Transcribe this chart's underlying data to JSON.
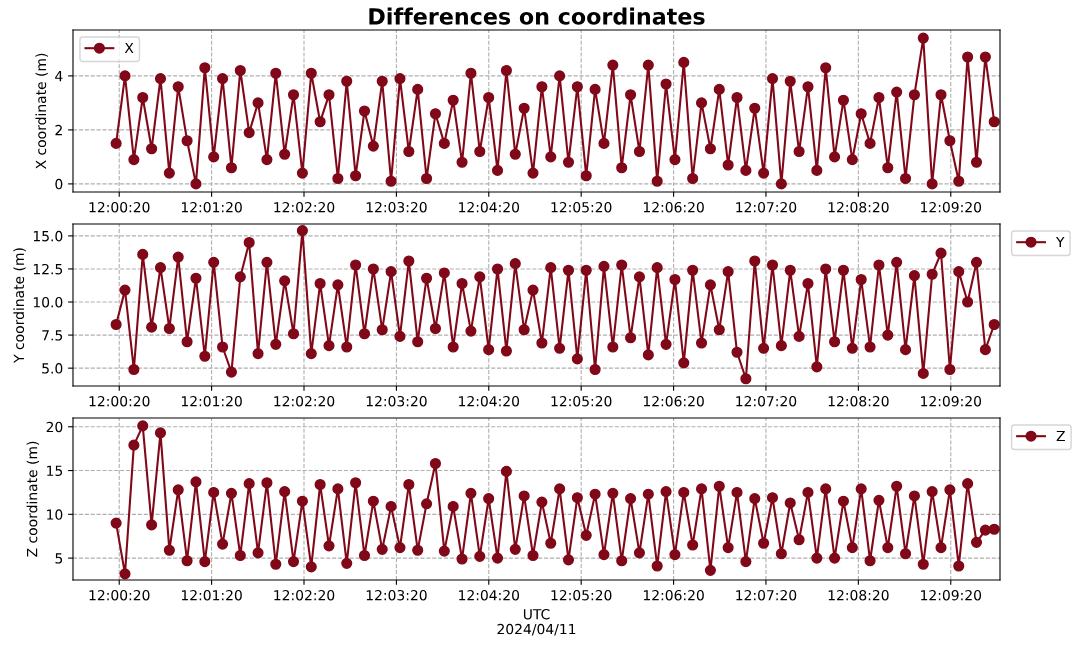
{
  "chart_data": [
    {
      "type": "line",
      "title": "Differences on coordinates",
      "ylabel": "X coordinate (m)",
      "legend": "top left",
      "grid": true,
      "marker": "circle",
      "line_style": "solid",
      "xlim": [
        11.99722,
        12.16444
      ],
      "ylim": [
        -0.3,
        5.7
      ],
      "yticks": [
        0,
        2,
        4
      ],
      "xticks": [
        {
          "value": 12.00556,
          "label": "12:00:20"
        },
        {
          "value": 12.02222,
          "label": "12:01:20"
        },
        {
          "value": 12.03889,
          "label": "12:02:20"
        },
        {
          "value": 12.05556,
          "label": "12:03:20"
        },
        {
          "value": 12.07222,
          "label": "12:04:20"
        },
        {
          "value": 12.08889,
          "label": "12:05:20"
        },
        {
          "value": 12.10556,
          "label": "12:06:20"
        },
        {
          "value": 12.12222,
          "label": "12:07:20"
        },
        {
          "value": 12.13889,
          "label": "12:08:20"
        },
        {
          "value": 12.15556,
          "label": "12:09:20"
        }
      ],
      "x": [
        12.005,
        12.0066,
        12.0082,
        12.0098,
        12.0114,
        12.013,
        12.0146,
        12.0162,
        12.0178,
        12.0194,
        12.021,
        12.0226,
        12.0242,
        12.0258,
        12.0274,
        12.029,
        12.0306,
        12.0322,
        12.0338,
        12.0354,
        12.037,
        12.0386,
        12.0402,
        12.0418,
        12.0434,
        12.045,
        12.0466,
        12.0482,
        12.0498,
        12.0514,
        12.053,
        12.0546,
        12.0562,
        12.0578,
        12.0594,
        12.061,
        12.0626,
        12.0642,
        12.0658,
        12.0674,
        12.069,
        12.0706,
        12.0722,
        12.0738,
        12.0754,
        12.077,
        12.0786,
        12.0802,
        12.0818,
        12.0834,
        12.085,
        12.0866,
        12.0882,
        12.0898,
        12.0914,
        12.093,
        12.0946,
        12.0962,
        12.0978,
        12.0994,
        12.101,
        12.1026,
        12.1042,
        12.1058,
        12.1074,
        12.109,
        12.1106,
        12.1122,
        12.1138,
        12.1154,
        12.117,
        12.1186,
        12.1202,
        12.1218,
        12.1234,
        12.125,
        12.1266,
        12.1282,
        12.1298,
        12.1314,
        12.133,
        12.1346,
        12.1362,
        12.1378,
        12.1394,
        12.141,
        12.1426,
        12.1442,
        12.1458,
        12.1474,
        12.149,
        12.1506,
        12.1522,
        12.1538,
        12.1554,
        12.157,
        12.1586,
        12.1602,
        12.1618,
        12.1634
      ],
      "series": [
        {
          "name": "X",
          "color": "#800818",
          "values": [
            1.5,
            4.0,
            0.9,
            3.2,
            1.3,
            3.9,
            0.4,
            3.6,
            1.6,
            0.0,
            4.3,
            1.0,
            3.9,
            0.6,
            4.2,
            1.9,
            3.0,
            0.9,
            4.1,
            1.1,
            3.3,
            0.4,
            4.1,
            2.3,
            3.3,
            0.2,
            3.8,
            0.3,
            2.7,
            1.4,
            3.8,
            0.1,
            3.9,
            1.2,
            3.5,
            0.2,
            2.6,
            1.5,
            3.1,
            0.8,
            4.1,
            1.2,
            3.2,
            0.5,
            4.2,
            1.1,
            2.8,
            0.4,
            3.6,
            1.0,
            4.0,
            0.8,
            3.6,
            0.3,
            3.5,
            1.5,
            4.4,
            0.6,
            3.3,
            1.2,
            4.4,
            0.1,
            3.7,
            0.9,
            4.5,
            0.2,
            3.0,
            1.3,
            3.5,
            0.7,
            3.2,
            0.5,
            2.8,
            0.4,
            3.9,
            0.0,
            3.8,
            1.2,
            3.6,
            0.5,
            4.3,
            1.0,
            3.1,
            0.9,
            2.6,
            1.5,
            3.2,
            0.6,
            3.4,
            0.2,
            3.3,
            5.4,
            0.0,
            3.3,
            1.6,
            0.1,
            4.7,
            0.8,
            4.7,
            2.3
          ]
        }
      ]
    },
    {
      "type": "line",
      "ylabel": "Y coordinate (m)",
      "legend": "top right",
      "grid": true,
      "marker": "circle",
      "line_style": "solid",
      "xlim": [
        11.99722,
        12.16444
      ],
      "ylim": [
        3.65,
        15.9
      ],
      "yticks": [
        {
          "value": 5,
          "label": "5.0"
        },
        {
          "value": 7.5,
          "label": "7.5"
        },
        {
          "value": 10,
          "label": "10.0"
        },
        {
          "value": 12.5,
          "label": "12.5"
        },
        {
          "value": 15,
          "label": "15.0"
        }
      ],
      "xticks": [
        {
          "value": 12.00556,
          "label": "12:00:20"
        },
        {
          "value": 12.02222,
          "label": "12:01:20"
        },
        {
          "value": 12.03889,
          "label": "12:02:20"
        },
        {
          "value": 12.05556,
          "label": "12:03:20"
        },
        {
          "value": 12.07222,
          "label": "12:04:20"
        },
        {
          "value": 12.08889,
          "label": "12:05:20"
        },
        {
          "value": 12.10556,
          "label": "12:06:20"
        },
        {
          "value": 12.12222,
          "label": "12:07:20"
        },
        {
          "value": 12.13889,
          "label": "12:08:20"
        },
        {
          "value": 12.15556,
          "label": "12:09:20"
        }
      ],
      "x": [
        12.005,
        12.0066,
        12.0082,
        12.0098,
        12.0114,
        12.013,
        12.0146,
        12.0162,
        12.0178,
        12.0194,
        12.021,
        12.0226,
        12.0242,
        12.0258,
        12.0274,
        12.029,
        12.0306,
        12.0322,
        12.0338,
        12.0354,
        12.037,
        12.0386,
        12.0402,
        12.0418,
        12.0434,
        12.045,
        12.0466,
        12.0482,
        12.0498,
        12.0514,
        12.053,
        12.0546,
        12.0562,
        12.0578,
        12.0594,
        12.061,
        12.0626,
        12.0642,
        12.0658,
        12.0674,
        12.069,
        12.0706,
        12.0722,
        12.0738,
        12.0754,
        12.077,
        12.0786,
        12.0802,
        12.0818,
        12.0834,
        12.085,
        12.0866,
        12.0882,
        12.0898,
        12.0914,
        12.093,
        12.0946,
        12.0962,
        12.0978,
        12.0994,
        12.101,
        12.1026,
        12.1042,
        12.1058,
        12.1074,
        12.109,
        12.1106,
        12.1122,
        12.1138,
        12.1154,
        12.117,
        12.1186,
        12.1202,
        12.1218,
        12.1234,
        12.125,
        12.1266,
        12.1282,
        12.1298,
        12.1314,
        12.133,
        12.1346,
        12.1362,
        12.1378,
        12.1394,
        12.141,
        12.1426,
        12.1442,
        12.1458,
        12.1474,
        12.149,
        12.1506,
        12.1522,
        12.1538,
        12.1554,
        12.157,
        12.1586,
        12.1602,
        12.1618,
        12.1634
      ],
      "series": [
        {
          "name": "Y",
          "color": "#800818",
          "values": [
            8.3,
            10.9,
            4.9,
            13.6,
            8.1,
            12.6,
            8.0,
            13.4,
            7.0,
            11.8,
            5.9,
            13.0,
            6.6,
            4.7,
            11.9,
            14.5,
            6.1,
            13.0,
            6.8,
            11.6,
            7.6,
            15.4,
            6.1,
            11.4,
            6.7,
            11.3,
            6.6,
            12.8,
            7.6,
            12.5,
            7.9,
            12.3,
            7.4,
            13.1,
            7.0,
            11.8,
            8.0,
            12.2,
            6.6,
            11.4,
            7.8,
            11.9,
            6.4,
            12.5,
            6.3,
            12.9,
            7.9,
            10.9,
            6.9,
            12.6,
            6.5,
            12.4,
            5.7,
            12.4,
            4.9,
            12.7,
            6.6,
            12.8,
            7.3,
            11.9,
            6.0,
            12.6,
            6.8,
            11.7,
            5.4,
            12.4,
            6.9,
            11.3,
            7.9,
            12.3,
            6.2,
            4.2,
            13.1,
            6.5,
            12.8,
            6.7,
            12.4,
            7.4,
            11.4,
            5.1,
            12.5,
            7.0,
            12.4,
            6.5,
            11.7,
            6.6,
            12.8,
            7.5,
            13.0,
            6.4,
            12.0,
            4.6,
            12.1,
            13.7,
            4.9,
            12.3,
            10.0,
            13.0,
            6.4,
            8.3
          ]
        }
      ]
    },
    {
      "type": "line",
      "ylabel": "Z coordinate (m)",
      "xlabel": "UTC",
      "annotations": [
        "2024/04/11"
      ],
      "legend": "top right",
      "grid": true,
      "marker": "circle",
      "line_style": "solid",
      "xlim": [
        11.99722,
        12.16444
      ],
      "ylim": [
        2.5,
        21
      ],
      "yticks": [
        5,
        10,
        15,
        20
      ],
      "xticks": [
        {
          "value": 12.00556,
          "label": "12:00:20"
        },
        {
          "value": 12.02222,
          "label": "12:01:20"
        },
        {
          "value": 12.03889,
          "label": "12:02:20"
        },
        {
          "value": 12.05556,
          "label": "12:03:20"
        },
        {
          "value": 12.07222,
          "label": "12:04:20"
        },
        {
          "value": 12.08889,
          "label": "12:05:20"
        },
        {
          "value": 12.10556,
          "label": "12:06:20"
        },
        {
          "value": 12.12222,
          "label": "12:07:20"
        },
        {
          "value": 12.13889,
          "label": "12:08:20"
        },
        {
          "value": 12.15556,
          "label": "12:09:20"
        }
      ],
      "x": [
        12.005,
        12.0066,
        12.0082,
        12.0098,
        12.0114,
        12.013,
        12.0146,
        12.0162,
        12.0178,
        12.0194,
        12.021,
        12.0226,
        12.0242,
        12.0258,
        12.0274,
        12.029,
        12.0306,
        12.0322,
        12.0338,
        12.0354,
        12.037,
        12.0386,
        12.0402,
        12.0418,
        12.0434,
        12.045,
        12.0466,
        12.0482,
        12.0498,
        12.0514,
        12.053,
        12.0546,
        12.0562,
        12.0578,
        12.0594,
        12.061,
        12.0626,
        12.0642,
        12.0658,
        12.0674,
        12.069,
        12.0706,
        12.0722,
        12.0738,
        12.0754,
        12.077,
        12.0786,
        12.0802,
        12.0818,
        12.0834,
        12.085,
        12.0866,
        12.0882,
        12.0898,
        12.0914,
        12.093,
        12.0946,
        12.0962,
        12.0978,
        12.0994,
        12.101,
        12.1026,
        12.1042,
        12.1058,
        12.1074,
        12.109,
        12.1106,
        12.1122,
        12.1138,
        12.1154,
        12.117,
        12.1186,
        12.1202,
        12.1218,
        12.1234,
        12.125,
        12.1266,
        12.1282,
        12.1298,
        12.1314,
        12.133,
        12.1346,
        12.1362,
        12.1378,
        12.1394,
        12.141,
        12.1426,
        12.1442,
        12.1458,
        12.1474,
        12.149,
        12.1506,
        12.1522,
        12.1538,
        12.1554,
        12.157,
        12.1586,
        12.1602,
        12.1618,
        12.1634
      ],
      "series": [
        {
          "name": "Z",
          "color": "#800818",
          "values": [
            9.0,
            3.2,
            17.9,
            20.1,
            8.8,
            19.3,
            5.9,
            12.8,
            4.7,
            13.7,
            4.6,
            12.5,
            6.6,
            12.4,
            5.3,
            13.5,
            5.6,
            13.6,
            4.3,
            12.6,
            4.6,
            11.5,
            4.0,
            13.4,
            6.4,
            12.9,
            4.4,
            13.6,
            5.3,
            11.5,
            6.0,
            10.9,
            6.2,
            13.4,
            5.9,
            11.2,
            15.8,
            5.8,
            10.9,
            4.9,
            12.4,
            5.2,
            11.8,
            5.0,
            14.9,
            6.0,
            12.1,
            5.3,
            11.4,
            6.7,
            12.9,
            4.8,
            11.9,
            7.6,
            12.3,
            5.4,
            12.4,
            4.7,
            11.8,
            5.6,
            12.3,
            4.1,
            12.6,
            5.4,
            12.5,
            6.5,
            12.9,
            3.6,
            13.2,
            6.2,
            12.5,
            4.6,
            11.8,
            6.7,
            11.9,
            5.5,
            11.3,
            7.1,
            12.5,
            5.0,
            12.9,
            5.0,
            11.5,
            6.2,
            12.9,
            4.7,
            11.6,
            6.2,
            13.2,
            5.5,
            12.1,
            4.3,
            12.6,
            6.2,
            12.8,
            4.1,
            13.5,
            6.8,
            8.2,
            8.3
          ]
        }
      ]
    }
  ]
}
